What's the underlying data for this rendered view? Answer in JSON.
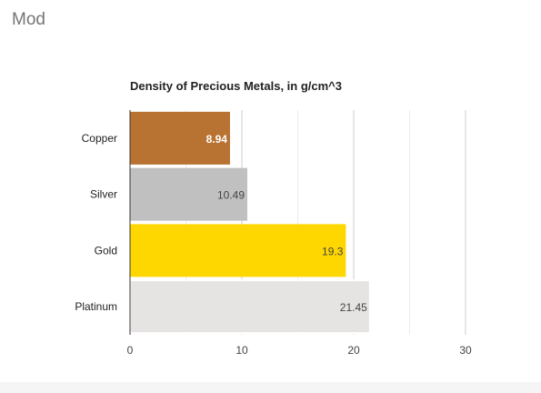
{
  "header": {
    "title": "Mod"
  },
  "chart_data": {
    "type": "bar",
    "orientation": "horizontal",
    "title": "Density of Precious Metals, in g/cm^3",
    "xlabel": "",
    "ylabel": "",
    "categories": [
      "Copper",
      "Silver",
      "Gold",
      "Platinum"
    ],
    "values": [
      8.94,
      10.49,
      19.3,
      21.45
    ],
    "data_labels": [
      "8.94",
      "10.49",
      "19.3",
      "21.45"
    ],
    "bar_colors": [
      "#b87333",
      "#c0c0c0",
      "#ffd700",
      "#e5e4e2"
    ],
    "label_colors": [
      "#ffffff",
      "#444444",
      "#444444",
      "#444444"
    ],
    "label_bold": [
      true,
      false,
      false,
      false
    ],
    "xlim": [
      0,
      35
    ],
    "xticks": [
      0,
      10,
      20,
      30
    ],
    "grid": true,
    "legend": "none"
  }
}
